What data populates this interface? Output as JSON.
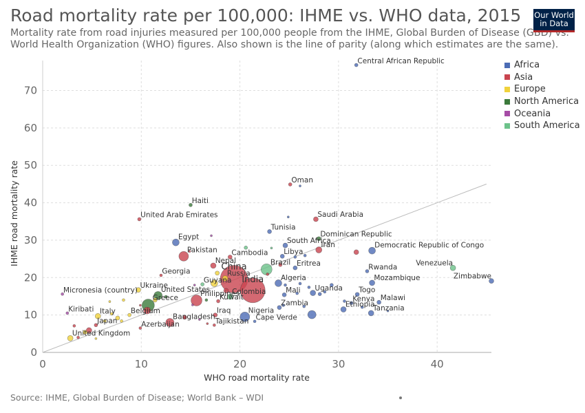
{
  "header": {
    "title": "Road mortality rate per 100,000: IHME vs. WHO data, 2015",
    "subtitle": "Mortality rate from road injuries measured per 100,000 people from the IHME, Global Burden of Disease (GBD) vs. World Health Organization (WHO) figures. Also shown is the line of parity (along which estimates are the same).",
    "logo_line1": "Our World",
    "logo_line2": "in Data"
  },
  "footer": {
    "source": "Source: IHME, Global Burden of Disease; World Bank – WDI"
  },
  "colors": {
    "Africa": "#4c6cb5",
    "Asia": "#c9444f",
    "Europe": "#f0d23c",
    "North America": "#3b7a3b",
    "Oceania": "#a64ca6",
    "South America": "#6cc28a"
  },
  "chart_data": {
    "type": "scatter",
    "title": "Road mortality rate per 100,000: IHME vs. WHO data, 2015",
    "xlabel": "WHO road mortality rate",
    "ylabel": "IHME road mortality rate",
    "xlim": [
      0,
      45.5
    ],
    "ylim": [
      0,
      78
    ],
    "x_ticks": [
      0,
      10,
      20,
      30,
      40
    ],
    "y_ticks": [
      0,
      10,
      20,
      30,
      40,
      50,
      60,
      70
    ],
    "grid": true,
    "legend_position": "right",
    "parity_line": true,
    "legend": [
      "Africa",
      "Asia",
      "Europe",
      "North America",
      "Oceania",
      "South America"
    ],
    "points": [
      {
        "x": 31.8,
        "y": 76.8,
        "r": 2.5,
        "region": "Africa",
        "label": "Central African Republic"
      },
      {
        "x": 25.1,
        "y": 44.9,
        "r": 2.5,
        "region": "Asia",
        "label": "Oman"
      },
      {
        "x": 26.1,
        "y": 44.5,
        "r": 1.5,
        "region": "Africa",
        "label": ""
      },
      {
        "x": 15.0,
        "y": 39.4,
        "r": 2.5,
        "region": "North America",
        "label": "Haiti"
      },
      {
        "x": 9.8,
        "y": 35.6,
        "r": 2.5,
        "region": "Asia",
        "label": "United Arab Emirates"
      },
      {
        "x": 27.7,
        "y": 35.6,
        "r": 3.5,
        "region": "Asia",
        "label": "Saudi Arabia"
      },
      {
        "x": 24.9,
        "y": 36.2,
        "r": 1.5,
        "region": "Africa",
        "label": ""
      },
      {
        "x": 17.1,
        "y": 31.2,
        "r": 1.5,
        "region": "Oceania",
        "label": ""
      },
      {
        "x": 23.0,
        "y": 32.3,
        "r": 3,
        "region": "Africa",
        "label": "Tunisia"
      },
      {
        "x": 13.5,
        "y": 29.4,
        "r": 5,
        "region": "Africa",
        "label": "Egypt"
      },
      {
        "x": 28.0,
        "y": 30.4,
        "r": 3,
        "region": "North America",
        "label": "Dominican Republic"
      },
      {
        "x": 24.6,
        "y": 28.6,
        "r": 3.5,
        "region": "Africa",
        "label": "South Africa"
      },
      {
        "x": 23.2,
        "y": 27.9,
        "r": 1.5,
        "region": "South America",
        "label": ""
      },
      {
        "x": 28.0,
        "y": 27.4,
        "r": 4.5,
        "region": "Asia",
        "label": "Iran"
      },
      {
        "x": 31.8,
        "y": 26.8,
        "r": 3.5,
        "region": "Asia",
        "label": ""
      },
      {
        "x": 33.4,
        "y": 27.2,
        "r": 5,
        "region": "Africa",
        "label": "Democratic Republic of Congo"
      },
      {
        "x": 14.3,
        "y": 25.7,
        "r": 7,
        "region": "Asia",
        "label": "Pakistan"
      },
      {
        "x": 14.9,
        "y": 27.0,
        "r": 1.5,
        "region": "Asia",
        "label": ""
      },
      {
        "x": 19.0,
        "y": 25.5,
        "r": 3,
        "region": "Asia",
        "label": "Cambodia"
      },
      {
        "x": 20.6,
        "y": 28.0,
        "r": 2.5,
        "region": "South America",
        "label": ""
      },
      {
        "x": 24.3,
        "y": 25.7,
        "r": 3,
        "region": "Africa",
        "label": "Libya"
      },
      {
        "x": 25.6,
        "y": 25.5,
        "r": 2,
        "region": "Africa",
        "label": ""
      },
      {
        "x": 26.6,
        "y": 25.9,
        "r": 2,
        "region": "Africa",
        "label": ""
      },
      {
        "x": 17.3,
        "y": 23.2,
        "r": 4,
        "region": "Asia",
        "label": "Nepal"
      },
      {
        "x": 19.4,
        "y": 19.6,
        "r": 20,
        "region": "Asia",
        "label": "China"
      },
      {
        "x": 21.3,
        "y": 16.6,
        "r": 18,
        "region": "Asia",
        "label": "India"
      },
      {
        "x": 22.7,
        "y": 22.2,
        "r": 8,
        "region": "South America",
        "label": "Brazil"
      },
      {
        "x": 24.1,
        "y": 23.4,
        "r": 2.5,
        "region": "Asia",
        "label": ""
      },
      {
        "x": 22.8,
        "y": 20.9,
        "r": 2,
        "region": "Asia",
        "label": ""
      },
      {
        "x": 25.6,
        "y": 22.6,
        "r": 3,
        "region": "Africa",
        "label": "Eritrea"
      },
      {
        "x": 32.9,
        "y": 21.7,
        "r": 2.5,
        "region": "Africa",
        "label": "Rwanda"
      },
      {
        "x": 41.6,
        "y": 22.6,
        "r": 4,
        "region": "South America",
        "label": "Venezuela"
      },
      {
        "x": 45.5,
        "y": 19.1,
        "r": 3.5,
        "region": "Africa",
        "label": "Zimbabwe"
      },
      {
        "x": 12.0,
        "y": 20.6,
        "r": 2,
        "region": "Asia",
        "label": "Georgia"
      },
      {
        "x": 17.7,
        "y": 21.2,
        "r": 3,
        "region": "Europe",
        "label": ""
      },
      {
        "x": 18.5,
        "y": 19.8,
        "r": 4,
        "region": "Europe",
        "label": "Russia"
      },
      {
        "x": 16.2,
        "y": 18.2,
        "r": 2.5,
        "region": "South America",
        "label": "Guyana"
      },
      {
        "x": 15.4,
        "y": 18.0,
        "r": 1.5,
        "region": "Oceania",
        "label": ""
      },
      {
        "x": 17.4,
        "y": 18.5,
        "r": 5,
        "region": "Europe",
        "label": ""
      },
      {
        "x": 23.9,
        "y": 18.5,
        "r": 5,
        "region": "Africa",
        "label": "Algeria"
      },
      {
        "x": 24.6,
        "y": 18.0,
        "r": 2,
        "region": "Africa",
        "label": ""
      },
      {
        "x": 26.1,
        "y": 18.4,
        "r": 2,
        "region": "Africa",
        "label": ""
      },
      {
        "x": 27.0,
        "y": 17.4,
        "r": 2,
        "region": "Africa",
        "label": ""
      },
      {
        "x": 29.3,
        "y": 18.0,
        "r": 2.5,
        "region": "Africa",
        "label": ""
      },
      {
        "x": 33.4,
        "y": 18.6,
        "r": 4,
        "region": "Africa",
        "label": "Mozambique"
      },
      {
        "x": 9.7,
        "y": 16.7,
        "r": 3.5,
        "region": "Europe",
        "label": "Ukraine"
      },
      {
        "x": 11.7,
        "y": 15.2,
        "r": 6,
        "region": "North America",
        "label": "United States"
      },
      {
        "x": 12.5,
        "y": 14.9,
        "r": 2,
        "region": "North America",
        "label": ""
      },
      {
        "x": 15.6,
        "y": 13.9,
        "r": 8,
        "region": "Asia",
        "label": "Philippines"
      },
      {
        "x": 19.0,
        "y": 14.9,
        "r": 4,
        "region": "South America",
        "label": "Colombia"
      },
      {
        "x": 18.6,
        "y": 16.5,
        "r": 3.5,
        "region": "Asia",
        "label": ""
      },
      {
        "x": 17.8,
        "y": 13.7,
        "r": 2.5,
        "region": "Asia",
        "label": "Kuwait"
      },
      {
        "x": 16.6,
        "y": 14.0,
        "r": 2,
        "region": "North America",
        "label": ""
      },
      {
        "x": 15.2,
        "y": 12.7,
        "r": 1.5,
        "region": "Oceania",
        "label": ""
      },
      {
        "x": 24.5,
        "y": 15.4,
        "r": 3,
        "region": "Africa",
        "label": "Mali"
      },
      {
        "x": 25.8,
        "y": 15.8,
        "r": 2,
        "region": "Africa",
        "label": ""
      },
      {
        "x": 27.4,
        "y": 15.9,
        "r": 4,
        "region": "Africa",
        "label": "Uganda"
      },
      {
        "x": 28.1,
        "y": 15.6,
        "r": 2.5,
        "region": "Africa",
        "label": ""
      },
      {
        "x": 28.6,
        "y": 16.2,
        "r": 2,
        "region": "Africa",
        "label": ""
      },
      {
        "x": 31.9,
        "y": 15.5,
        "r": 3,
        "region": "Africa",
        "label": "Togo"
      },
      {
        "x": 2.0,
        "y": 15.6,
        "r": 2,
        "region": "Oceania",
        "label": "Micronesia (country)"
      },
      {
        "x": 10.7,
        "y": 12.6,
        "r": 9,
        "region": "North America",
        "label": "Greece"
      },
      {
        "x": 10.6,
        "y": 11.2,
        "r": 5,
        "region": "Asia",
        "label": ""
      },
      {
        "x": 9.9,
        "y": 12.6,
        "r": 1.5,
        "region": "Asia",
        "label": ""
      },
      {
        "x": 8.2,
        "y": 14.0,
        "r": 2,
        "region": "Europe",
        "label": ""
      },
      {
        "x": 6.8,
        "y": 13.6,
        "r": 1.5,
        "region": "Europe",
        "label": ""
      },
      {
        "x": 24.0,
        "y": 12.0,
        "r": 3,
        "region": "Africa",
        "label": "Zambia"
      },
      {
        "x": 30.6,
        "y": 13.7,
        "r": 2,
        "region": "Africa",
        "label": ""
      },
      {
        "x": 31.3,
        "y": 13.2,
        "r": 2.5,
        "region": "Africa",
        "label": "Kenya"
      },
      {
        "x": 34.1,
        "y": 13.4,
        "r": 3,
        "region": "Africa",
        "label": "Malawi"
      },
      {
        "x": 30.5,
        "y": 11.5,
        "r": 4,
        "region": "Africa",
        "label": "Ethiopia"
      },
      {
        "x": 32.4,
        "y": 12.1,
        "r": 2,
        "region": "Africa",
        "label": ""
      },
      {
        "x": 33.3,
        "y": 10.5,
        "r": 4,
        "region": "Africa",
        "label": "Tanzania"
      },
      {
        "x": 35.0,
        "y": 11.1,
        "r": 1.5,
        "region": "Africa",
        "label": ""
      },
      {
        "x": 17.5,
        "y": 10.0,
        "r": 3,
        "region": "Asia",
        "label": "Iraq"
      },
      {
        "x": 20.5,
        "y": 9.5,
        "r": 7,
        "region": "Africa",
        "label": "Nigeria"
      },
      {
        "x": 21.5,
        "y": 8.3,
        "r": 2,
        "region": "Africa",
        "label": "Cape Verde"
      },
      {
        "x": 27.3,
        "y": 10.1,
        "r": 6,
        "region": "Africa",
        "label": ""
      },
      {
        "x": 24.4,
        "y": 12.6,
        "r": 2,
        "region": "Africa",
        "label": ""
      },
      {
        "x": 26.5,
        "y": 12.3,
        "r": 2,
        "region": "Africa",
        "label": ""
      },
      {
        "x": 12.9,
        "y": 8.0,
        "r": 6,
        "region": "Asia",
        "label": "Bangladesh"
      },
      {
        "x": 14.4,
        "y": 9.4,
        "r": 3,
        "region": "Asia",
        "label": ""
      },
      {
        "x": 17.4,
        "y": 7.3,
        "r": 2,
        "region": "Asia",
        "label": "Tajikistan"
      },
      {
        "x": 15.9,
        "y": 8.8,
        "r": 1.5,
        "region": "Oceania",
        "label": ""
      },
      {
        "x": 16.7,
        "y": 7.7,
        "r": 1.5,
        "region": "Asia",
        "label": ""
      },
      {
        "x": 9.9,
        "y": 6.5,
        "r": 2,
        "region": "Asia",
        "label": "Azerbaijan"
      },
      {
        "x": 5.6,
        "y": 9.7,
        "r": 4,
        "region": "Europe",
        "label": "Italy"
      },
      {
        "x": 8.8,
        "y": 10.0,
        "r": 2.5,
        "region": "Europe",
        "label": "Belgium"
      },
      {
        "x": 7.6,
        "y": 9.2,
        "r": 3,
        "region": "Europe",
        "label": ""
      },
      {
        "x": 7.0,
        "y": 10.3,
        "r": 2,
        "region": "Europe",
        "label": ""
      },
      {
        "x": 6.3,
        "y": 8.4,
        "r": 2,
        "region": "Europe",
        "label": ""
      },
      {
        "x": 8.0,
        "y": 8.4,
        "r": 2,
        "region": "Europe",
        "label": ""
      },
      {
        "x": 2.5,
        "y": 10.5,
        "r": 2,
        "region": "Oceania",
        "label": "Kiribati"
      },
      {
        "x": 5.4,
        "y": 7.3,
        "r": 2.5,
        "region": "Asia",
        "label": "Japan"
      },
      {
        "x": 3.2,
        "y": 7.1,
        "r": 2,
        "region": "Asia",
        "label": ""
      },
      {
        "x": 4.3,
        "y": 5.4,
        "r": 3,
        "region": "Europe",
        "label": ""
      },
      {
        "x": 4.7,
        "y": 5.9,
        "r": 4,
        "region": "Asia",
        "label": ""
      },
      {
        "x": 2.8,
        "y": 3.8,
        "r": 4,
        "region": "Europe",
        "label": "United Kingdom"
      },
      {
        "x": 3.6,
        "y": 4.0,
        "r": 2,
        "region": "Asia",
        "label": ""
      },
      {
        "x": 5.4,
        "y": 3.7,
        "r": 1.5,
        "region": "Europe",
        "label": ""
      },
      {
        "x": 11.4,
        "y": 14.0,
        "r": 3,
        "region": "Europe",
        "label": ""
      },
      {
        "x": 14.4,
        "y": 9.2,
        "r": 1.5,
        "region": "Asia",
        "label": ""
      }
    ]
  }
}
